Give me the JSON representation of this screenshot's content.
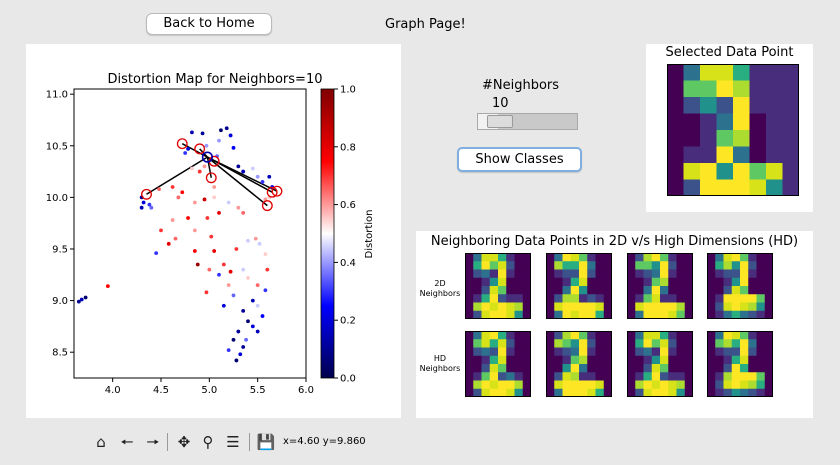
{
  "header": {
    "back_button": "Back to Home",
    "page_title": "Graph Page!"
  },
  "controls": {
    "neighbors_label": "#Neighbors",
    "neighbors_value": "10",
    "slider_fraction": 0.1,
    "show_classes_button": "Show Classes"
  },
  "selected_panel": {
    "title": "Selected Data Point",
    "image": [
      [
        0,
        3,
        8,
        8,
        5,
        1,
        1,
        1
      ],
      [
        0,
        6,
        6,
        9,
        7,
        1,
        1,
        1
      ],
      [
        0,
        2,
        4,
        2,
        9,
        1,
        1,
        1
      ],
      [
        0,
        0,
        1,
        3,
        9,
        0,
        1,
        1
      ],
      [
        0,
        0,
        1,
        6,
        7,
        0,
        1,
        1
      ],
      [
        0,
        1,
        1,
        9,
        3,
        0,
        1,
        1
      ],
      [
        0,
        8,
        9,
        4,
        9,
        6,
        8,
        1
      ],
      [
        0,
        2,
        9,
        9,
        9,
        8,
        4,
        1
      ]
    ]
  },
  "neighbors_panel": {
    "title": "Neighboring Data Points in 2D v/s High Dimensions (HD)",
    "row_2d_label": [
      "2D",
      "Neighbors"
    ],
    "row_hd_label": [
      "HD",
      "Neighbors"
    ],
    "images_2d": [
      [
        [
          0,
          3,
          8,
          8,
          5,
          1,
          0,
          0
        ],
        [
          0,
          5,
          9,
          6,
          8,
          2,
          0,
          0
        ],
        [
          0,
          2,
          3,
          1,
          9,
          1,
          0,
          0
        ],
        [
          0,
          0,
          1,
          4,
          8,
          0,
          0,
          0
        ],
        [
          0,
          0,
          2,
          8,
          6,
          0,
          0,
          0
        ],
        [
          0,
          1,
          5,
          9,
          2,
          1,
          1,
          0
        ],
        [
          0,
          7,
          9,
          8,
          9,
          8,
          7,
          0
        ],
        [
          0,
          2,
          8,
          9,
          9,
          8,
          4,
          0
        ]
      ],
      [
        [
          0,
          3,
          9,
          8,
          6,
          1,
          0,
          0
        ],
        [
          0,
          7,
          5,
          5,
          9,
          3,
          0,
          0
        ],
        [
          0,
          1,
          2,
          2,
          9,
          2,
          0,
          0
        ],
        [
          0,
          0,
          1,
          5,
          8,
          0,
          0,
          0
        ],
        [
          0,
          0,
          3,
          9,
          4,
          0,
          0,
          0
        ],
        [
          0,
          2,
          7,
          7,
          1,
          2,
          1,
          0
        ],
        [
          0,
          8,
          9,
          9,
          9,
          9,
          8,
          0
        ],
        [
          0,
          3,
          9,
          8,
          9,
          9,
          5,
          0
        ]
      ],
      [
        [
          0,
          2,
          7,
          9,
          6,
          1,
          0,
          0
        ],
        [
          0,
          6,
          6,
          4,
          9,
          2,
          0,
          0
        ],
        [
          0,
          1,
          2,
          3,
          9,
          1,
          0,
          0
        ],
        [
          0,
          0,
          1,
          6,
          7,
          0,
          0,
          0
        ],
        [
          0,
          0,
          3,
          9,
          3,
          0,
          0,
          0
        ],
        [
          0,
          1,
          6,
          8,
          1,
          1,
          0,
          0
        ],
        [
          0,
          8,
          9,
          9,
          9,
          9,
          7,
          0
        ],
        [
          0,
          3,
          9,
          9,
          9,
          8,
          6,
          0
        ]
      ],
      [
        [
          0,
          3,
          8,
          9,
          6,
          1,
          0,
          0
        ],
        [
          0,
          5,
          7,
          4,
          9,
          2,
          0,
          0
        ],
        [
          0,
          1,
          2,
          2,
          9,
          1,
          0,
          0
        ],
        [
          0,
          0,
          1,
          4,
          9,
          0,
          0,
          0
        ],
        [
          0,
          0,
          2,
          8,
          6,
          0,
          0,
          0
        ],
        [
          0,
          1,
          9,
          9,
          9,
          9,
          6,
          0
        ],
        [
          0,
          2,
          8,
          9,
          8,
          7,
          4,
          0
        ],
        [
          0,
          1,
          3,
          5,
          3,
          2,
          1,
          0
        ]
      ]
    ],
    "images_hd": [
      [
        [
          0,
          3,
          8,
          9,
          5,
          1,
          0,
          0
        ],
        [
          0,
          6,
          8,
          5,
          8,
          2,
          0,
          0
        ],
        [
          0,
          2,
          3,
          2,
          9,
          1,
          0,
          0
        ],
        [
          0,
          0,
          1,
          5,
          8,
          0,
          0,
          0
        ],
        [
          0,
          0,
          2,
          8,
          6,
          0,
          0,
          0
        ],
        [
          0,
          1,
          6,
          9,
          2,
          3,
          1,
          0
        ],
        [
          0,
          7,
          9,
          8,
          9,
          9,
          7,
          0
        ],
        [
          0,
          2,
          8,
          9,
          9,
          8,
          4,
          0
        ]
      ],
      [
        [
          0,
          2,
          7,
          9,
          6,
          1,
          0,
          0
        ],
        [
          0,
          7,
          6,
          4,
          9,
          2,
          0,
          0
        ],
        [
          0,
          1,
          2,
          3,
          9,
          1,
          0,
          0
        ],
        [
          0,
          0,
          1,
          6,
          7,
          0,
          0,
          0
        ],
        [
          0,
          0,
          4,
          9,
          3,
          0,
          0,
          0
        ],
        [
          0,
          2,
          8,
          7,
          1,
          1,
          0,
          0
        ],
        [
          0,
          8,
          9,
          9,
          9,
          9,
          8,
          0
        ],
        [
          0,
          3,
          9,
          9,
          9,
          8,
          5,
          0
        ]
      ],
      [
        [
          0,
          3,
          8,
          8,
          5,
          1,
          0,
          0
        ],
        [
          0,
          5,
          9,
          6,
          8,
          2,
          0,
          0
        ],
        [
          0,
          2,
          3,
          1,
          9,
          1,
          0,
          0
        ],
        [
          0,
          0,
          1,
          4,
          8,
          0,
          0,
          0
        ],
        [
          0,
          0,
          2,
          8,
          6,
          0,
          0,
          0
        ],
        [
          0,
          1,
          5,
          9,
          2,
          1,
          1,
          0
        ],
        [
          0,
          7,
          9,
          8,
          9,
          8,
          7,
          0
        ],
        [
          0,
          2,
          8,
          9,
          9,
          8,
          4,
          0
        ]
      ],
      [
        [
          0,
          3,
          9,
          8,
          6,
          1,
          0,
          0
        ],
        [
          0,
          6,
          7,
          5,
          9,
          3,
          0,
          0
        ],
        [
          0,
          1,
          2,
          2,
          9,
          2,
          0,
          0
        ],
        [
          0,
          0,
          1,
          5,
          8,
          0,
          0,
          0
        ],
        [
          0,
          0,
          2,
          9,
          5,
          0,
          0,
          0
        ],
        [
          0,
          1,
          7,
          9,
          9,
          9,
          6,
          0
        ],
        [
          0,
          2,
          8,
          9,
          8,
          7,
          5,
          0
        ],
        [
          0,
          1,
          2,
          4,
          3,
          2,
          1,
          0
        ]
      ]
    ]
  },
  "toolbar": {
    "icons": [
      "home-icon",
      "back-arrow-icon",
      "forward-arrow-icon",
      "pan-icon",
      "zoom-icon",
      "configure-icon",
      "save-icon"
    ],
    "coords": "x=4.60 y=9.860"
  },
  "chart_data": {
    "type": "scatter",
    "title": "Distortion Map for Neighbors=10",
    "xlim": [
      3.6,
      6.0
    ],
    "ylim": [
      8.25,
      11.05
    ],
    "x_ticks": [
      4.0,
      4.5,
      5.0,
      5.5,
      6.0
    ],
    "y_ticks": [
      8.5,
      9.0,
      9.5,
      10.0,
      10.5,
      11.0
    ],
    "colorbar": {
      "label": "Distortion",
      "range": [
        0.0,
        1.0
      ],
      "ticks": [
        "0.0",
        "0.2",
        "0.4",
        "0.6",
        "0.8",
        "1.0"
      ],
      "colormap": "seismic"
    },
    "selected_point": [
      4.98,
      10.39
    ],
    "neighbor_points": [
      [
        4.72,
        10.52
      ],
      [
        4.9,
        10.47
      ],
      [
        5.05,
        10.35
      ],
      [
        4.35,
        10.03
      ],
      [
        5.02,
        10.19
      ],
      [
        5.65,
        10.05
      ],
      [
        5.7,
        10.06
      ],
      [
        5.6,
        9.92
      ]
    ],
    "points": [
      [
        4.82,
        10.63,
        0.15
      ],
      [
        4.93,
        10.62,
        0.1
      ],
      [
        5.12,
        10.65,
        0.05
      ],
      [
        5.18,
        10.67,
        0.1
      ],
      [
        5.22,
        10.6,
        0.2
      ],
      [
        4.75,
        10.43,
        0.3
      ],
      [
        4.95,
        10.3,
        0.6
      ],
      [
        4.82,
        10.28,
        0.55
      ],
      [
        4.9,
        10.25,
        0.7
      ],
      [
        4.97,
        10.5,
        0.4
      ],
      [
        5.08,
        10.4,
        0.35
      ],
      [
        5.3,
        10.3,
        0.1
      ],
      [
        5.35,
        10.25,
        0.15
      ],
      [
        5.45,
        10.28,
        0.45
      ],
      [
        5.5,
        10.2,
        0.4
      ],
      [
        5.55,
        10.15,
        0.3
      ],
      [
        5.65,
        10.1,
        0.2
      ],
      [
        5.62,
        10.0,
        0.55
      ],
      [
        5.58,
        9.98,
        0.6
      ],
      [
        4.3,
        10.0,
        0.1
      ],
      [
        4.32,
        9.95,
        0.2
      ],
      [
        4.3,
        9.9,
        0.15
      ],
      [
        4.38,
        9.93,
        0.3
      ],
      [
        4.48,
        10.08,
        0.65
      ],
      [
        4.62,
        10.1,
        0.7
      ],
      [
        4.72,
        10.05,
        0.75
      ],
      [
        4.68,
        10.0,
        0.65
      ],
      [
        4.85,
        9.95,
        0.6
      ],
      [
        4.95,
        9.98,
        0.85
      ],
      [
        5.05,
        10.0,
        0.55
      ],
      [
        5.2,
        9.95,
        0.45
      ],
      [
        5.3,
        9.9,
        0.6
      ],
      [
        5.35,
        9.85,
        0.65
      ],
      [
        5.1,
        9.85,
        0.8
      ],
      [
        4.98,
        9.8,
        0.7
      ],
      [
        4.78,
        9.8,
        0.75
      ],
      [
        4.62,
        9.78,
        0.6
      ],
      [
        4.5,
        9.68,
        0.7
      ],
      [
        4.65,
        9.6,
        0.65
      ],
      [
        4.58,
        9.55,
        0.8
      ],
      [
        4.45,
        9.46,
        0.3
      ],
      [
        4.85,
        9.68,
        0.6
      ],
      [
        5.02,
        9.62,
        0.7
      ],
      [
        4.85,
        9.48,
        0.75
      ],
      [
        5.05,
        9.48,
        0.8
      ],
      [
        5.0,
        9.3,
        0.65
      ],
      [
        4.88,
        9.35,
        0.95
      ],
      [
        5.15,
        9.35,
        0.7
      ],
      [
        5.22,
        9.28,
        0.8
      ],
      [
        5.1,
        9.25,
        0.3
      ],
      [
        5.35,
        9.3,
        0.45
      ],
      [
        5.4,
        9.22,
        0.55
      ],
      [
        5.5,
        9.15,
        0.65
      ],
      [
        5.2,
        9.15,
        0.6
      ],
      [
        5.6,
        9.3,
        0.7
      ],
      [
        5.58,
        9.45,
        0.55
      ],
      [
        5.48,
        9.6,
        0.6
      ],
      [
        5.55,
        9.7,
        0.5
      ],
      [
        5.4,
        9.58,
        0.45
      ],
      [
        5.28,
        9.5,
        0.7
      ],
      [
        5.58,
        9.1,
        0.3
      ],
      [
        5.45,
        9.0,
        0.15
      ],
      [
        5.35,
        8.9,
        0.1
      ],
      [
        5.4,
        8.8,
        0.05
      ],
      [
        5.45,
        8.75,
        0.2
      ],
      [
        5.3,
        8.7,
        0.1
      ],
      [
        5.25,
        8.62,
        0.05
      ],
      [
        5.35,
        8.55,
        0.1
      ],
      [
        5.2,
        8.52,
        0.3
      ],
      [
        5.32,
        8.48,
        0.2
      ],
      [
        5.28,
        8.42,
        0.05
      ],
      [
        5.38,
        8.62,
        0.35
      ],
      [
        5.5,
        8.7,
        0.15
      ],
      [
        5.55,
        8.85,
        0.25
      ],
      [
        5.5,
        8.95,
        0.45
      ],
      [
        5.25,
        9.05,
        0.35
      ],
      [
        5.15,
        8.95,
        0.2
      ],
      [
        4.97,
        9.08,
        0.7
      ],
      [
        3.65,
        8.99,
        0.1
      ],
      [
        3.68,
        9.01,
        0.15
      ],
      [
        3.72,
        9.03,
        0.05
      ],
      [
        3.95,
        9.14,
        0.75
      ],
      [
        4.78,
        10.47,
        0.2
      ],
      [
        5.1,
        10.55,
        0.4
      ],
      [
        5.25,
        10.48,
        0.25
      ],
      [
        5.62,
        10.2,
        0.15
      ],
      [
        4.4,
        9.9,
        0.35
      ],
      [
        5.05,
        10.1,
        0.6
      ],
      [
        5.52,
        9.55,
        0.45
      ],
      [
        5.28,
        9.75,
        0.5
      ]
    ]
  }
}
